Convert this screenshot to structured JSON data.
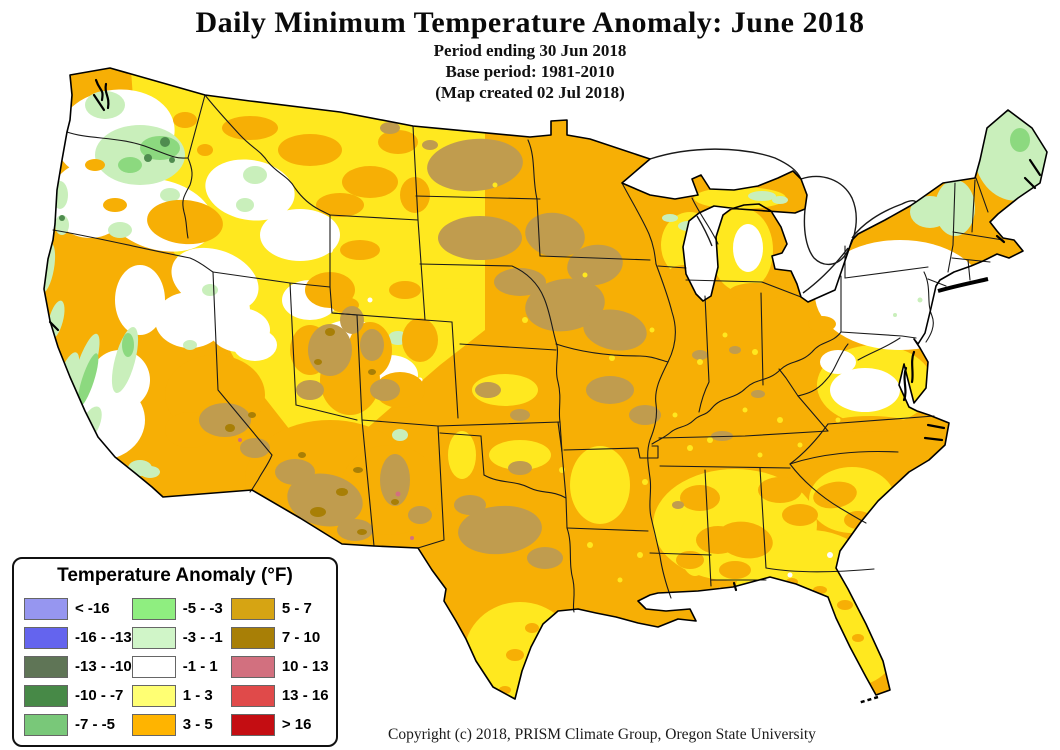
{
  "header": {
    "title": "Daily Minimum Temperature Anomaly: June 2018",
    "subtitle_lines": [
      "Period ending 30 Jun 2018",
      "Base period: 1981-2010",
      "(Map created 02 Jul 2018)"
    ]
  },
  "legend": {
    "title": "Temperature Anomaly (°F)",
    "items": [
      {
        "label": "< -16",
        "color": "#9696F0"
      },
      {
        "label": "-16 - -13",
        "color": "#6464EE"
      },
      {
        "label": "-13 - -10",
        "color": "#5F7556"
      },
      {
        "label": "-10 - -7",
        "color": "#478947"
      },
      {
        "label": "-7 - -5",
        "color": "#79C879"
      },
      {
        "label": "-5 - -3",
        "color": "#8FEE80"
      },
      {
        "label": "-3 - -1",
        "color": "#D0F5C8"
      },
      {
        "label": "-1 - 1",
        "color": "#FFFFFF"
      },
      {
        "label": "1 - 3",
        "color": "#FFFF73"
      },
      {
        "label": "3 - 5",
        "color": "#FFB400"
      },
      {
        "label": "5 - 7",
        "color": "#D6A413"
      },
      {
        "label": "7 - 10",
        "color": "#A87F06"
      },
      {
        "label": "10 - 13",
        "color": "#D2707F"
      },
      {
        "label": "13 - 16",
        "color": "#E04A4A"
      },
      {
        "label": "> 16",
        "color": "#C40D12"
      }
    ]
  },
  "map": {
    "type": "choropleth-raster",
    "area": "contiguous United States",
    "regions": [
      {
        "region": "Pacific Northwest (WA, OR, ID)",
        "observed": "-1 to 1 near-normal white with -5 to -3 green patches and 1 to 3 yellow speckles"
      },
      {
        "region": "California",
        "observed": "-3 to -1 along coast and Central Valley, -1 to 3 inland"
      },
      {
        "region": "Northern Rockies (MT, WY, CO)",
        "observed": "1 to 3 yellow with 3 to 5 orange patches"
      },
      {
        "region": "Southwest (southern NV, UT, AZ, NM)",
        "observed": "3 to 5 with widespread 5 to 7 and small 7 to 10 spots"
      },
      {
        "region": "Northern Plains and Midwest (ND, SD, NE, MN, IA, MO)",
        "observed": "3 to 5 orange with large 5 to 7 tan patches"
      },
      {
        "region": "Texas and Southern Plains",
        "observed": "3 to 5, 5 to 7 in north-central Texas, 1 to 3 in south Texas"
      },
      {
        "region": "Southeast (GA, FL, AL, MS, SC)",
        "observed": "1 to 3 yellow with 3 to 5 orange patches"
      },
      {
        "region": "Ohio Valley and Mid-South (OH, IN, IL, KY, TN, AR, NC)",
        "observed": "3 to 5 orange"
      },
      {
        "region": "Mid-Atlantic (PA, NY, NJ, MD, VA, WV)",
        "observed": "-1 to 1 white grading to 1 to 3 yellow"
      },
      {
        "region": "Northern New England and upstate NY (ME, NH, VT)",
        "observed": "-3 to -1 pale green"
      }
    ]
  },
  "footer": {
    "copyright": "Copyright (c) 2018, PRISM Climate Group, Oregon State University"
  }
}
